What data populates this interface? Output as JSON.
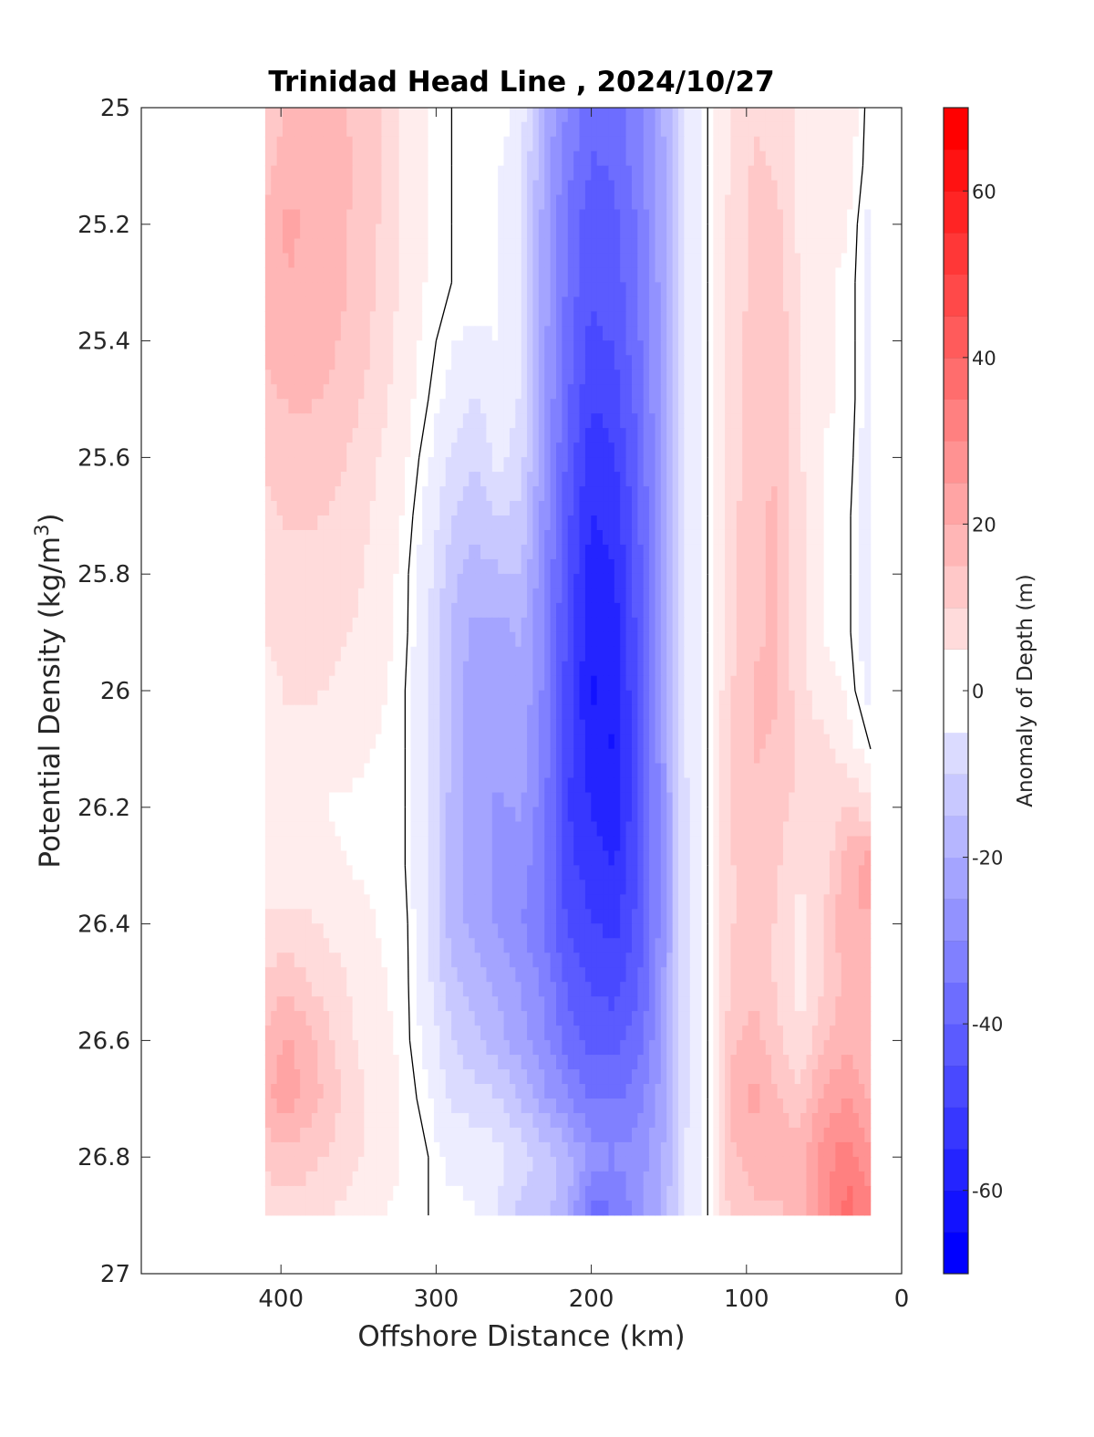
{
  "chart_data": {
    "type": "heatmap",
    "title": "Trinidad Head Line , 2024/10/27",
    "xlabel": "Offshore Distance (km)",
    "ylabel": "Potential Density (kg/m",
    "ylabel_sup": "3",
    "ylabel_close": ")",
    "colorbar_label": "Anomaly of Depth (m)",
    "xlim": [
      490,
      0
    ],
    "ylim": [
      25,
      27
    ],
    "x_reversed": true,
    "y_reversed": true,
    "x_ticks": [
      400,
      300,
      200,
      100,
      0
    ],
    "y_ticks": [
      25,
      25.2,
      25.4,
      25.6,
      25.8,
      26,
      26.2,
      26.4,
      26.6,
      26.8,
      27
    ],
    "colorbar_range": [
      -70,
      70
    ],
    "colorbar_ticks": [
      60,
      40,
      20,
      0,
      -20,
      -40,
      -60
    ],
    "colorbar_step": 5,
    "colors": {
      "negative": "#0000ff",
      "positive": "#ff0000",
      "zero": "#ffffff"
    },
    "data_x_range": [
      410,
      20
    ],
    "data_y_range": [
      25,
      26.9
    ],
    "x": [
      410,
      395,
      380,
      365,
      350,
      335,
      320,
      305,
      290,
      275,
      260,
      245,
      230,
      215,
      200,
      185,
      170,
      155,
      140,
      125,
      110,
      95,
      80,
      65,
      50,
      35,
      20
    ],
    "y": [
      25.0,
      25.1,
      25.2,
      25.3,
      25.4,
      25.5,
      25.6,
      25.7,
      25.8,
      25.9,
      26.0,
      26.1,
      26.2,
      26.3,
      26.4,
      26.5,
      26.6,
      26.7,
      26.8,
      26.9
    ],
    "z": [
      [
        14,
        18,
        20,
        18,
        16,
        12,
        6,
        2,
        0,
        0,
        0,
        -5,
        -22,
        -33,
        -40,
        -40,
        -34,
        -24,
        -8,
        0,
        8,
        12,
        12,
        6,
        4,
        6,
        -2
      ],
      [
        16,
        20,
        22,
        21,
        17,
        12,
        6,
        2,
        0,
        0,
        -2,
        -6,
        -24,
        -36,
        -43,
        -42,
        -35,
        -25,
        -8,
        0,
        8,
        13,
        12,
        5,
        4,
        4,
        -2
      ],
      [
        18,
        24,
        21,
        19,
        16,
        12,
        6,
        2,
        0,
        0,
        -2,
        -8,
        -25,
        -38,
        -46,
        -44,
        -37,
        -26,
        -8,
        0,
        9,
        14,
        14,
        6,
        3,
        3,
        -4
      ],
      [
        18,
        22,
        21,
        19,
        16,
        11,
        6,
        2,
        0,
        0,
        -2,
        -8,
        -25,
        -39,
        -47,
        -45,
        -38,
        -26,
        -8,
        0,
        9,
        14,
        15,
        7,
        3,
        2,
        -4
      ],
      [
        18,
        21,
        20,
        18,
        15,
        10,
        5,
        1,
        -2,
        -4,
        -2,
        -8,
        -26,
        -40,
        -49,
        -47,
        -39,
        -27,
        -8,
        0,
        9,
        15,
        16,
        8,
        3,
        2,
        -4
      ],
      [
        16,
        18,
        18,
        16,
        13,
        9,
        4,
        0,
        -4,
        -8,
        -4,
        -8,
        -27,
        -42,
        -52,
        -50,
        -41,
        -27,
        -8,
        0,
        10,
        16,
        17,
        8,
        3,
        2,
        -4
      ],
      [
        13,
        15,
        15,
        14,
        11,
        7,
        3,
        -2,
        -8,
        -12,
        -6,
        -10,
        -28,
        -44,
        -56,
        -53,
        -42,
        -28,
        -8,
        0,
        10,
        16,
        17,
        8,
        2,
        2,
        -6
      ],
      [
        11,
        13,
        13,
        12,
        9,
        6,
        2,
        -4,
        -12,
        -16,
        -12,
        -14,
        -30,
        -46,
        -58,
        -56,
        -44,
        -28,
        -8,
        0,
        10,
        17,
        18,
        9,
        2,
        1,
        -6
      ],
      [
        10,
        11,
        11,
        10,
        8,
        5,
        1,
        -6,
        -16,
        -20,
        -18,
        -18,
        -32,
        -48,
        -60,
        -58,
        -45,
        -29,
        -8,
        0,
        11,
        17,
        18,
        9,
        2,
        1,
        -6
      ],
      [
        8,
        9,
        9,
        8,
        7,
        4,
        1,
        -8,
        -18,
        -24,
        -24,
        -22,
        -33,
        -49,
        -62,
        -60,
        -46,
        -29,
        -8,
        0,
        11,
        17,
        18,
        9,
        2,
        1,
        -6
      ],
      [
        6,
        8,
        8,
        7,
        6,
        3,
        0,
        -8,
        -18,
        -26,
        -26,
        -23,
        -34,
        -50,
        -63,
        -62,
        -47,
        -30,
        -8,
        0,
        12,
        18,
        18,
        9,
        4,
        2,
        -4
      ],
      [
        5,
        6,
        6,
        4,
        3,
        2,
        0,
        -8,
        -18,
        -26,
        -27,
        -25,
        -35,
        -51,
        -60,
        -63,
        -48,
        -30,
        -8,
        0,
        12,
        18,
        17,
        12,
        9,
        4,
        0
      ],
      [
        5,
        4,
        3,
        2,
        2,
        1,
        0,
        -8,
        -19,
        -26,
        -28,
        -27,
        -36,
        -52,
        -58,
        -61,
        -48,
        -31,
        -9,
        0,
        12,
        17,
        15,
        10,
        8,
        14,
        8
      ],
      [
        6,
        5,
        4,
        3,
        2,
        1,
        0,
        -8,
        -20,
        -26,
        -28,
        -30,
        -37,
        -51,
        -55,
        -58,
        -47,
        -31,
        -9,
        0,
        12,
        16,
        13,
        8,
        10,
        20,
        26
      ],
      [
        8,
        9,
        8,
        6,
        4,
        2,
        1,
        -8,
        -20,
        -24,
        -28,
        -32,
        -38,
        -48,
        -52,
        -54,
        -46,
        -31,
        -9,
        0,
        12,
        15,
        12,
        6,
        12,
        22,
        22
      ],
      [
        14,
        16,
        12,
        9,
        6,
        3,
        1,
        -6,
        -16,
        -20,
        -24,
        -28,
        -34,
        -44,
        -48,
        -50,
        -44,
        -30,
        -9,
        0,
        13,
        16,
        12,
        5,
        12,
        20,
        20
      ],
      [
        18,
        24,
        18,
        12,
        7,
        4,
        1,
        -4,
        -12,
        -16,
        -20,
        -26,
        -32,
        -40,
        -44,
        -44,
        -40,
        -28,
        -9,
        0,
        16,
        20,
        14,
        8,
        16,
        22,
        18
      ],
      [
        22,
        25,
        20,
        14,
        9,
        5,
        2,
        -2,
        -8,
        -10,
        -12,
        -18,
        -26,
        -32,
        -38,
        -38,
        -35,
        -26,
        -9,
        0,
        20,
        24,
        18,
        14,
        24,
        28,
        22
      ],
      [
        14,
        16,
        14,
        11,
        8,
        5,
        2,
        0,
        -4,
        -4,
        -6,
        -10,
        -14,
        -20,
        -30,
        -32,
        -30,
        -24,
        -8,
        0,
        16,
        20,
        20,
        20,
        30,
        36,
        28
      ],
      [
        8,
        10,
        9,
        7,
        5,
        3,
        1,
        0,
        -1,
        -2,
        -8,
        -14,
        -16,
        -22,
        -40,
        -38,
        -30,
        -22,
        -8,
        0,
        14,
        16,
        16,
        20,
        30,
        40,
        34
      ]
    ]
  }
}
